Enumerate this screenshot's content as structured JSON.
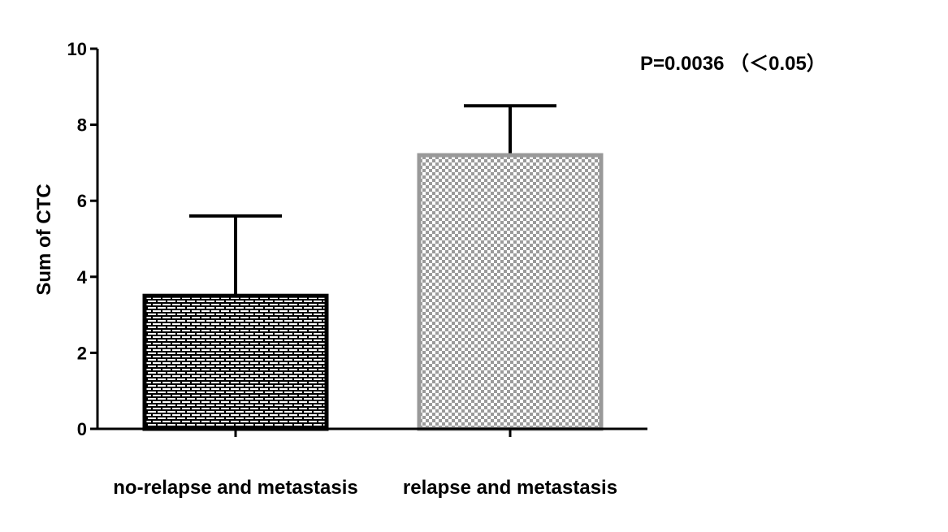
{
  "chart_data": {
    "type": "bar",
    "title": "",
    "xlabel": "",
    "ylabel": "Sum of  CTC",
    "ylim": [
      0,
      10
    ],
    "yticks": [
      0,
      2,
      4,
      6,
      8,
      10
    ],
    "grid": false,
    "categories": [
      "no-relapse and metastasis",
      "relapse and metastasis"
    ],
    "values": [
      3.5,
      7.2
    ],
    "error_upper": [
      5.6,
      8.5
    ],
    "annotation": "P=0.0036 （＜0.05）",
    "bar_styles": [
      {
        "pattern": "brick",
        "fill": "#000000",
        "stroke": "#000000",
        "hatch": "#ffffff"
      },
      {
        "pattern": "checker",
        "fill": "#ffffff",
        "stroke": "#999999",
        "hatch": "#999999"
      }
    ]
  }
}
